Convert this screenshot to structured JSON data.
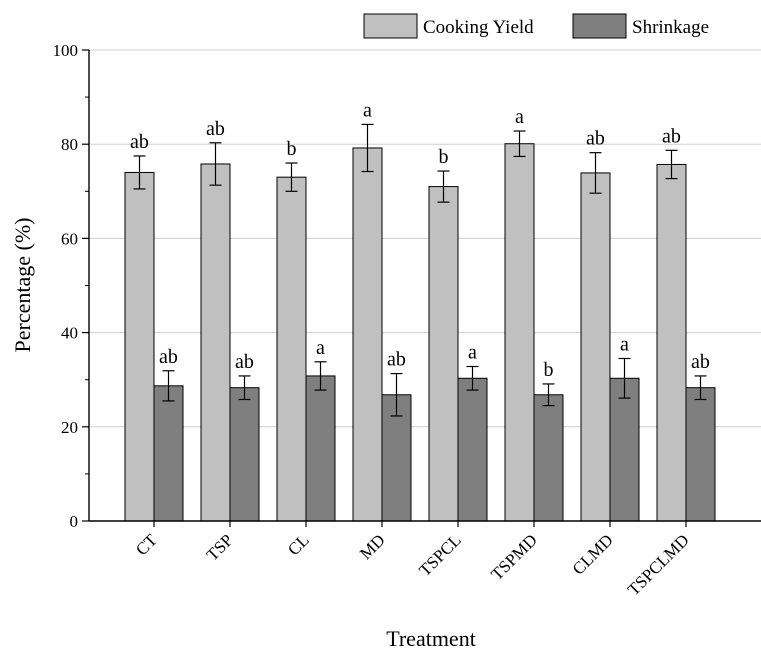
{
  "chart_data": {
    "type": "bar",
    "title": "",
    "xlabel": "Treatment",
    "ylabel": "Percentage (%)",
    "ylim": [
      0,
      100
    ],
    "yticks": [
      0,
      20,
      40,
      60,
      80,
      100
    ],
    "grid": true,
    "legend_position": "top-right",
    "categories": [
      "CT",
      "TSP",
      "CL",
      "MD",
      "TSPCL",
      "TSPMD",
      "CLMD",
      "TSPCLMD"
    ],
    "series": [
      {
        "name": "Cooking Yield",
        "color": "#c0c0c0",
        "values": [
          74.0,
          75.8,
          73.0,
          79.2,
          71.0,
          80.1,
          73.9,
          75.7
        ],
        "errors": [
          3.5,
          4.5,
          3.0,
          5.0,
          3.3,
          2.7,
          4.3,
          3.0
        ],
        "labels": [
          "ab",
          "ab",
          "b",
          "a",
          "b",
          "a",
          "ab",
          "ab"
        ]
      },
      {
        "name": "Shrinkage",
        "color": "#7f7f7f",
        "values": [
          28.7,
          28.3,
          30.8,
          26.8,
          30.3,
          26.8,
          30.3,
          28.3
        ],
        "errors": [
          3.2,
          2.5,
          3.0,
          4.5,
          2.5,
          2.3,
          4.2,
          2.5
        ],
        "labels": [
          "ab",
          "ab",
          "a",
          "ab",
          "a",
          "b",
          "a",
          "ab"
        ]
      }
    ]
  }
}
